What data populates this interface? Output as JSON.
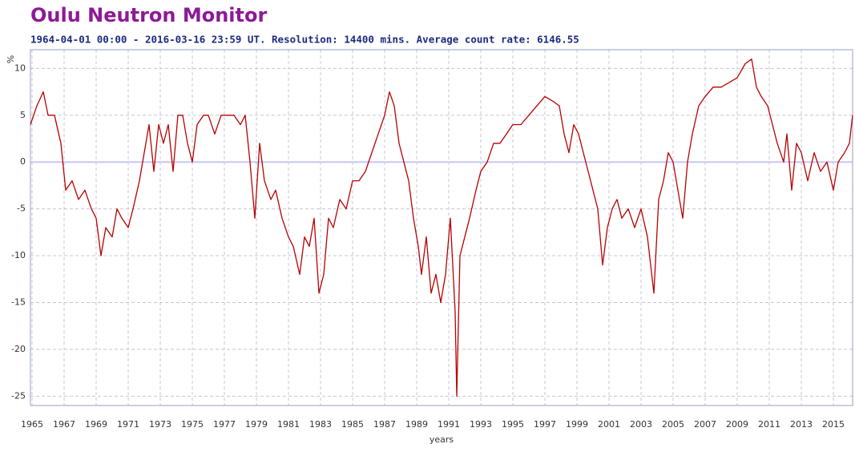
{
  "chart_data": {
    "type": "line",
    "title": "Oulu Neutron Monitor",
    "subtitle": "1964-04-01 00:00 - 2016-03-16 23:59 UT. Resolution: 14400 mins. Average count rate: 6146.55",
    "ylabel": "%",
    "xlabel": "years",
    "color": "#b80000",
    "grid": true,
    "xlim": [
      1964.9,
      2016.2
    ],
    "ylim": [
      -26,
      12
    ],
    "xticks": [
      1965,
      1967,
      1969,
      1971,
      1973,
      1975,
      1977,
      1979,
      1981,
      1983,
      1985,
      1987,
      1989,
      1991,
      1993,
      1995,
      1997,
      1999,
      2001,
      2003,
      2005,
      2007,
      2009,
      2011,
      2013,
      2015
    ],
    "yticks": [
      -25,
      -20,
      -15,
      -10,
      -5,
      0,
      5,
      10
    ],
    "x": [
      1964.9,
      1965.3,
      1965.7,
      1966.0,
      1966.4,
      1966.8,
      1967.1,
      1967.5,
      1967.9,
      1968.3,
      1968.7,
      1969.0,
      1969.3,
      1969.6,
      1970.0,
      1970.3,
      1970.6,
      1971.0,
      1971.3,
      1971.7,
      1972.0,
      1972.3,
      1972.6,
      1972.9,
      1973.2,
      1973.5,
      1973.8,
      1974.1,
      1974.4,
      1974.7,
      1975.0,
      1975.3,
      1975.7,
      1976.0,
      1976.4,
      1976.8,
      1977.2,
      1977.6,
      1978.0,
      1978.3,
      1978.6,
      1978.9,
      1979.2,
      1979.5,
      1979.9,
      1980.2,
      1980.6,
      1981.0,
      1981.3,
      1981.7,
      1982.0,
      1982.3,
      1982.6,
      1982.9,
      1983.2,
      1983.5,
      1983.8,
      1984.2,
      1984.6,
      1985.0,
      1985.4,
      1985.8,
      1986.2,
      1986.6,
      1987.0,
      1987.3,
      1987.6,
      1987.9,
      1988.2,
      1988.5,
      1988.8,
      1989.1,
      1989.3,
      1989.6,
      1989.9,
      1990.2,
      1990.5,
      1990.8,
      1991.1,
      1991.4,
      1991.5,
      1991.7,
      1992.0,
      1992.3,
      1992.7,
      1993.0,
      1993.4,
      1993.8,
      1994.2,
      1994.6,
      1995.0,
      1995.5,
      1996.0,
      1996.5,
      1997.0,
      1997.5,
      1997.9,
      1998.2,
      1998.5,
      1998.8,
      1999.1,
      1999.4,
      1999.7,
      2000.0,
      2000.3,
      2000.6,
      2000.9,
      2001.2,
      2001.5,
      2001.8,
      2002.2,
      2002.6,
      2003.0,
      2003.4,
      2003.8,
      2004.1,
      2004.4,
      2004.7,
      2005.0,
      2005.3,
      2005.6,
      2005.9,
      2006.2,
      2006.6,
      2007.0,
      2007.5,
      2008.0,
      2008.5,
      2009.0,
      2009.5,
      2009.9,
      2010.2,
      2010.5,
      2010.9,
      2011.2,
      2011.5,
      2011.9,
      2012.1,
      2012.4,
      2012.7,
      2013.0,
      2013.4,
      2013.8,
      2014.2,
      2014.6,
      2015.0,
      2015.3,
      2015.7,
      2016.0,
      2016.2
    ],
    "values": [
      4,
      6,
      7.5,
      5,
      5,
      2,
      -3,
      -2,
      -4,
      -3,
      -5,
      -6,
      -10,
      -7,
      -8,
      -5,
      -6,
      -7,
      -5,
      -2,
      1,
      4,
      -1,
      4,
      2,
      4,
      -1,
      5,
      5,
      2,
      0,
      4,
      5,
      5,
      3,
      5,
      5,
      5,
      4,
      5,
      0,
      -6,
      2,
      -2,
      -4,
      -3,
      -6,
      -8,
      -9,
      -12,
      -8,
      -9,
      -6,
      -14,
      -12,
      -6,
      -7,
      -4,
      -5,
      -2,
      -2,
      -1,
      1,
      3,
      5,
      7.5,
      6,
      2,
      0,
      -2,
      -6,
      -9,
      -12,
      -8,
      -14,
      -12,
      -15,
      -12,
      -6,
      -16,
      -25,
      -10,
      -8,
      -6,
      -3,
      -1,
      0,
      2,
      2,
      3,
      4,
      4,
      5,
      6,
      7,
      6.5,
      6,
      3,
      1,
      4,
      3,
      1,
      -1,
      -3,
      -5,
      -11,
      -7,
      -5,
      -4,
      -6,
      -5,
      -7,
      -5,
      -8,
      -14,
      -4,
      -2,
      1,
      0,
      -3,
      -6,
      0,
      3,
      6,
      7,
      8,
      8,
      8.5,
      9,
      10.5,
      11,
      8,
      7,
      6,
      4,
      2,
      0,
      3,
      -3,
      2,
      1,
      -2,
      1,
      -1,
      0,
      -3,
      0,
      1,
      2,
      5
    ]
  }
}
